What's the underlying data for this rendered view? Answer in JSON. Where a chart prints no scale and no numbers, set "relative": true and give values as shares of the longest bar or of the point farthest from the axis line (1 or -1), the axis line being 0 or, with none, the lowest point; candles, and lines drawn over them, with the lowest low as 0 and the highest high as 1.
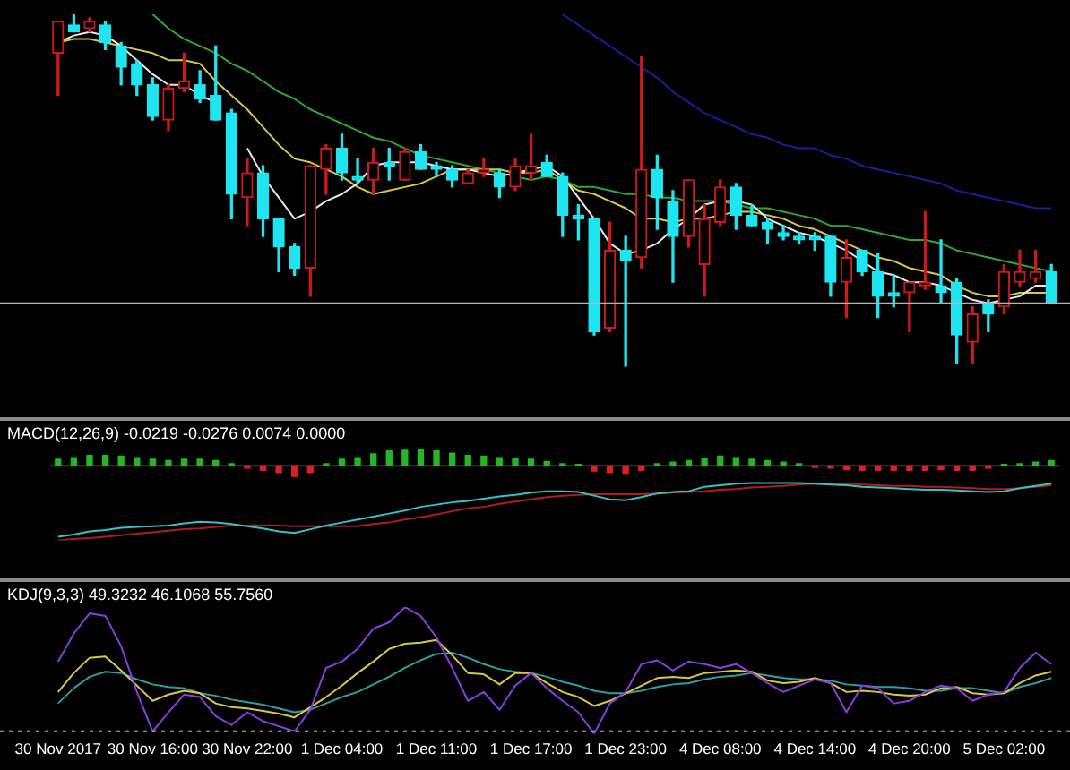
{
  "chart_data": [
    {
      "type": "candlestick",
      "relative": true,
      "categories": [
        null,
        null,
        null,
        null,
        null,
        null,
        null,
        null,
        null,
        null,
        null,
        null,
        null,
        null,
        null,
        null,
        null,
        null,
        null,
        null,
        null,
        null,
        null,
        null,
        null,
        null,
        null,
        null,
        null,
        null,
        null,
        null,
        null,
        null,
        null,
        null,
        null,
        null,
        null,
        null,
        null,
        null,
        null,
        null,
        null,
        null,
        null,
        null,
        null,
        null,
        null,
        null,
        null,
        null,
        null,
        null,
        null,
        null,
        null,
        null,
        null,
        null,
        null,
        null
      ],
      "ohlc": [
        [
          0.89,
          0.98,
          0.77,
          0.98
        ],
        [
          0.97,
          1,
          0.95,
          0.95
        ],
        [
          0.96,
          0.99,
          0.95,
          0.98
        ],
        [
          0.97,
          0.98,
          0.9,
          0.92
        ],
        [
          0.91,
          0.92,
          0.8,
          0.85
        ],
        [
          0.86,
          0.87,
          0.77,
          0.8
        ],
        [
          0.8,
          0.82,
          0.7,
          0.71
        ],
        [
          0.7,
          0.8,
          0.67,
          0.79
        ],
        [
          0.79,
          0.89,
          0.78,
          0.81
        ],
        [
          0.8,
          0.84,
          0.75,
          0.76
        ],
        [
          0.77,
          0.91,
          0.7,
          0.7
        ],
        [
          0.72,
          0.73,
          0.42,
          0.49
        ],
        [
          0.48,
          0.59,
          0.4,
          0.55
        ],
        [
          0.55,
          0.57,
          0.37,
          0.42
        ],
        [
          0.42,
          0.42,
          0.27,
          0.34
        ],
        [
          0.34,
          0.35,
          0.26,
          0.28
        ],
        [
          0.28,
          0.57,
          0.2,
          0.57
        ],
        [
          0.56,
          0.63,
          0.49,
          0.62
        ],
        [
          0.62,
          0.66,
          0.53,
          0.55
        ],
        [
          0.54,
          0.59,
          0.52,
          0.53
        ],
        [
          0.53,
          0.62,
          0.49,
          0.58
        ],
        [
          0.58,
          0.62,
          0.53,
          0.57
        ],
        [
          0.53,
          0.62,
          0.53,
          0.61
        ],
        [
          0.61,
          0.63,
          0.56,
          0.56
        ],
        [
          0.57,
          0.58,
          0.54,
          0.56
        ],
        [
          0.56,
          0.57,
          0.51,
          0.53
        ],
        [
          0.52,
          0.56,
          0.52,
          0.55
        ],
        [
          0.55,
          0.59,
          0.54,
          0.56
        ],
        [
          0.55,
          0.56,
          0.48,
          0.51
        ],
        [
          0.51,
          0.59,
          0.5,
          0.57
        ],
        [
          0.55,
          0.66,
          0.53,
          0.57
        ],
        [
          0.58,
          0.6,
          0.54,
          0.54
        ],
        [
          0.54,
          0.55,
          0.37,
          0.43
        ],
        [
          0.43,
          0.46,
          0.36,
          0.42
        ],
        [
          0.42,
          0.42,
          0.09,
          0.1
        ],
        [
          0.11,
          0.41,
          0.1,
          0.33
        ],
        [
          0.33,
          0.37,
          0,
          0.3
        ],
        [
          0.31,
          0.88,
          0.28,
          0.56
        ],
        [
          0.56,
          0.6,
          0.39,
          0.48
        ],
        [
          0.47,
          0.5,
          0.24,
          0.37
        ],
        [
          0.37,
          0.53,
          0.34,
          0.53
        ],
        [
          0.29,
          0.46,
          0.2,
          0.42
        ],
        [
          0.41,
          0.53,
          0.4,
          0.51
        ],
        [
          0.51,
          0.52,
          0.39,
          0.43
        ],
        [
          0.43,
          0.46,
          0.4,
          0.4
        ],
        [
          0.41,
          0.42,
          0.35,
          0.39
        ],
        [
          0.38,
          0.4,
          0.36,
          0.37
        ],
        [
          0.37,
          0.38,
          0.35,
          0.36
        ],
        [
          0.37,
          0.38,
          0.33,
          0.36
        ],
        [
          0.37,
          0.37,
          0.2,
          0.24
        ],
        [
          0.24,
          0.36,
          0.14,
          0.31
        ],
        [
          0.33,
          0.33,
          0.26,
          0.27
        ],
        [
          0.27,
          0.32,
          0.14,
          0.2
        ],
        [
          0.21,
          0.26,
          0.17,
          0.2
        ],
        [
          0.21,
          0.24,
          0.1,
          0.24
        ],
        [
          0.23,
          0.44,
          0.22,
          0.24
        ],
        [
          0.23,
          0.36,
          0.18,
          0.21
        ],
        [
          0.24,
          0.25,
          0.01,
          0.09
        ],
        [
          0.07,
          0.17,
          0.01,
          0.15
        ],
        [
          0.18,
          0.19,
          0.1,
          0.15
        ],
        [
          0.17,
          0.29,
          0.15,
          0.27
        ],
        [
          0.24,
          0.33,
          0.23,
          0.27
        ],
        [
          0.25,
          0.33,
          0.24,
          0.27
        ],
        [
          0.27,
          0.29,
          0.18,
          0.18
        ]
      ],
      "colors": [
        "#cc1a1a",
        "#1ee6f0",
        "#cc1a1a",
        "#1ee6f0",
        "#1ee6f0",
        "#1ee6f0",
        "#1ee6f0",
        "#cc1a1a",
        "#cc1a1a",
        "#1ee6f0",
        "#1ee6f0",
        "#1ee6f0",
        "#cc1a1a",
        "#1ee6f0",
        "#1ee6f0",
        "#1ee6f0",
        "#cc1a1a",
        "#cc1a1a",
        "#1ee6f0",
        "#1ee6f0",
        "#cc1a1a",
        "#1ee6f0",
        "#cc1a1a",
        "#1ee6f0",
        "#1ee6f0",
        "#1ee6f0",
        "#cc1a1a",
        "#cc1a1a",
        "#1ee6f0",
        "#cc1a1a",
        "#cc1a1a",
        "#1ee6f0",
        "#1ee6f0",
        "#1ee6f0",
        "#1ee6f0",
        "#cc1a1a",
        "#1ee6f0",
        "#cc1a1a",
        "#1ee6f0",
        "#1ee6f0",
        "#cc1a1a",
        "#cc1a1a",
        "#cc1a1a",
        "#1ee6f0",
        "#1ee6f0",
        "#1ee6f0",
        "#1ee6f0",
        "#1ee6f0",
        "#1ee6f0",
        "#1ee6f0",
        "#cc1a1a",
        "#1ee6f0",
        "#1ee6f0",
        "#1ee6f0",
        "#cc1a1a",
        "#cc1a1a",
        "#1ee6f0",
        "#1ee6f0",
        "#cc1a1a",
        "#1ee6f0",
        "#cc1a1a",
        "#cc1a1a",
        "#cc1a1a",
        "#1ee6f0"
      ],
      "series": [
        {
          "type": "line",
          "color": "#e8e8e8",
          "values": [
            0.92,
            0.94,
            0.95,
            0.94,
            0.91,
            0.87,
            0.83,
            0.8,
            0.8,
            0.77,
            0.75,
            null,
            0.62,
            0.54,
            0.48,
            0.42,
            0.44,
            0.47,
            0.49,
            0.52,
            0.57,
            0.58,
            0.58,
            0.58,
            0.57,
            0.56,
            0.56,
            0.55,
            0.54,
            0.55,
            0.56,
            0.57,
            0.54,
            0.48,
            0.42,
            0.35,
            0.32,
            0.33,
            0.35,
            0.39,
            0.42,
            0.46,
            0.47,
            0.47,
            0.46,
            0.42,
            0.4,
            0.38,
            0.37,
            0.35,
            0.33,
            0.3,
            0.27,
            0.26,
            0.24,
            0.24,
            0.23,
            0.21,
            0.19,
            0.18,
            0.19,
            0.2,
            0.23,
            0.23
          ]
        },
        {
          "type": "line",
          "color": "#d8c840",
          "values": [
            0.92,
            0.93,
            0.93,
            0.92,
            0.91,
            0.9,
            0.89,
            0.87,
            0.87,
            0.86,
            0.81,
            0.77,
            0.73,
            0.68,
            0.63,
            0.59,
            0.58,
            0.56,
            0.54,
            0.51,
            0.49,
            0.5,
            0.51,
            0.52,
            0.54,
            0.56,
            0.56,
            0.56,
            0.56,
            0.55,
            0.55,
            0.56,
            0.53,
            0.5,
            0.49,
            0.47,
            0.45,
            0.42,
            0.42,
            0.41,
            0.42,
            0.42,
            0.43,
            0.44,
            0.44,
            0.43,
            0.42,
            0.4,
            0.39,
            0.37,
            0.35,
            0.33,
            0.31,
            0.3,
            0.28,
            0.27,
            0.26,
            0.23,
            0.21,
            0.2,
            0.2,
            0.21,
            0.21,
            0.21
          ]
        },
        {
          "type": "line",
          "color": "#2ea82e",
          "values": [
            null,
            null,
            null,
            null,
            null,
            null,
            1,
            0.96,
            0.93,
            0.91,
            0.89,
            0.86,
            0.84,
            0.81,
            0.78,
            0.76,
            0.73,
            0.71,
            0.69,
            0.67,
            0.65,
            0.64,
            0.62,
            0.6,
            0.59,
            0.58,
            0.57,
            0.56,
            0.55,
            0.54,
            0.53,
            0.54,
            0.53,
            0.51,
            0.51,
            0.5,
            0.49,
            0.49,
            0.48,
            0.48,
            0.47,
            0.47,
            0.47,
            0.46,
            0.45,
            0.45,
            0.44,
            0.43,
            0.42,
            0.4,
            0.4,
            0.39,
            0.38,
            0.37,
            0.36,
            0.36,
            0.35,
            0.33,
            0.32,
            0.31,
            0.3,
            0.29,
            0.28,
            0.27
          ]
        },
        {
          "type": "line",
          "color": "#1c1c9c",
          "values": [
            null,
            null,
            null,
            null,
            null,
            null,
            null,
            null,
            null,
            null,
            null,
            null,
            null,
            null,
            null,
            null,
            null,
            null,
            null,
            null,
            null,
            null,
            null,
            null,
            null,
            null,
            null,
            null,
            null,
            null,
            null,
            null,
            1,
            0.97,
            0.94,
            0.91,
            0.88,
            0.85,
            0.82,
            0.78,
            0.75,
            0.72,
            0.7,
            0.68,
            0.66,
            0.65,
            0.63,
            0.62,
            0.62,
            0.6,
            0.59,
            0.57,
            0.56,
            0.55,
            0.54,
            0.53,
            0.52,
            0.5,
            0.49,
            0.48,
            0.47,
            0.46,
            0.45,
            0.45
          ]
        }
      ],
      "ref_lines": [
        {
          "axis": "y",
          "value": 0.18,
          "color": "#b4b4b4"
        }
      ]
    },
    {
      "type": "bar",
      "relative": true,
      "categories": [
        null,
        null,
        null,
        null,
        null,
        null,
        null,
        null,
        null,
        null,
        null,
        null,
        null,
        null,
        null,
        null,
        null,
        null,
        null,
        null,
        null,
        null,
        null,
        null,
        null,
        null,
        null,
        null,
        null,
        null,
        null,
        null,
        null,
        null,
        null,
        null,
        null,
        null,
        null,
        null,
        null,
        null,
        null,
        null,
        null,
        null,
        null,
        null,
        null,
        null,
        null,
        null,
        null,
        null,
        null,
        null,
        null,
        null,
        null,
        null,
        null,
        null,
        null,
        null
      ],
      "series": [
        {
          "type": "bar",
          "values": [
            0.09,
            0.11,
            0.14,
            0.14,
            0.13,
            0.11,
            0.09,
            0.07,
            0.09,
            0.09,
            0.07,
            0.03,
            -0.03,
            -0.06,
            -0.09,
            -0.14,
            -0.09,
            0.03,
            0.09,
            0.11,
            0.16,
            0.2,
            0.21,
            0.22,
            0.2,
            0.17,
            0.14,
            0.13,
            0.11,
            0.1,
            0.09,
            0.06,
            0.03,
            0.02,
            -0.07,
            -0.09,
            -0.1,
            -0.06,
            0.03,
            0.05,
            0.07,
            0.1,
            0.13,
            0.11,
            0.09,
            0.07,
            0.05,
            0.03,
            -0.02,
            -0.03,
            -0.05,
            -0.06,
            -0.06,
            -0.06,
            -0.06,
            -0.06,
            -0.05,
            -0.06,
            -0.06,
            -0.03,
            0.02,
            0.03,
            0.05,
            0.07
          ],
          "colors": [
            "#22b822",
            "#22b822",
            "#22b822",
            "#22b822",
            "#22b822",
            "#22b822",
            "#22b822",
            "#22b822",
            "#22b822",
            "#22b822",
            "#22b822",
            "#22b822",
            "#e02020",
            "#e02020",
            "#e02020",
            "#e02020",
            "#e02020",
            "#22b822",
            "#22b822",
            "#22b822",
            "#22b822",
            "#22b822",
            "#22b822",
            "#22b822",
            "#22b822",
            "#22b822",
            "#22b822",
            "#22b822",
            "#22b822",
            "#22b822",
            "#22b822",
            "#22b822",
            "#22b822",
            "#22b822",
            "#e02020",
            "#e02020",
            "#e02020",
            "#e02020",
            "#22b822",
            "#22b822",
            "#22b822",
            "#22b822",
            "#22b822",
            "#22b822",
            "#22b822",
            "#22b822",
            "#22b822",
            "#22b822",
            "#e02020",
            "#e02020",
            "#e02020",
            "#e02020",
            "#e02020",
            "#e02020",
            "#e02020",
            "#e02020",
            "#e02020",
            "#e02020",
            "#e02020",
            "#e02020",
            "#22b822",
            "#22b822",
            "#22b822",
            "#22b822"
          ]
        },
        {
          "type": "line",
          "color": "#38c0c8",
          "values": [
            -0.95,
            -0.92,
            -0.88,
            -0.86,
            -0.83,
            -0.82,
            -0.81,
            -0.8,
            -0.77,
            -0.75,
            -0.76,
            -0.78,
            -0.81,
            -0.84,
            -0.88,
            -0.9,
            -0.85,
            -0.8,
            -0.76,
            -0.72,
            -0.68,
            -0.64,
            -0.6,
            -0.55,
            -0.52,
            -0.49,
            -0.47,
            -0.44,
            -0.41,
            -0.39,
            -0.36,
            -0.34,
            -0.34,
            -0.35,
            -0.4,
            -0.45,
            -0.46,
            -0.42,
            -0.37,
            -0.35,
            -0.34,
            -0.28,
            -0.26,
            -0.24,
            -0.23,
            -0.23,
            -0.23,
            -0.23,
            -0.24,
            -0.25,
            -0.26,
            -0.28,
            -0.29,
            -0.3,
            -0.31,
            -0.32,
            -0.32,
            -0.33,
            -0.34,
            -0.35,
            -0.34,
            -0.3,
            -0.27,
            -0.24
          ]
        },
        {
          "type": "line",
          "color": "#b01c1c",
          "values": [
            -1,
            -0.98,
            -0.97,
            -0.95,
            -0.93,
            -0.91,
            -0.89,
            -0.87,
            -0.85,
            -0.84,
            -0.82,
            -0.8,
            -0.8,
            -0.8,
            -0.8,
            -0.81,
            -0.81,
            -0.81,
            -0.81,
            -0.81,
            -0.78,
            -0.76,
            -0.72,
            -0.69,
            -0.65,
            -0.61,
            -0.57,
            -0.55,
            -0.51,
            -0.48,
            -0.45,
            -0.42,
            -0.4,
            -0.39,
            -0.38,
            -0.38,
            -0.38,
            -0.38,
            -0.37,
            -0.36,
            -0.35,
            -0.34,
            -0.32,
            -0.31,
            -0.29,
            -0.28,
            -0.27,
            -0.25,
            -0.24,
            -0.24,
            -0.24,
            -0.25,
            -0.26,
            -0.27,
            -0.27,
            -0.28,
            -0.28,
            -0.29,
            -0.3,
            -0.31,
            -0.31,
            -0.3,
            -0.28,
            -0.26
          ]
        }
      ],
      "annotations": [
        "MACD(12,26,9) -0.0219 -0.0276 0.0074 0.0000"
      ]
    },
    {
      "type": "line",
      "relative": true,
      "tick_labels": "x",
      "categories": [
        "30 Nov 2017",
        null,
        null,
        null,
        null,
        null,
        "30 Nov 16:00",
        null,
        null,
        null,
        null,
        null,
        "30 Nov 22:00",
        null,
        null,
        null,
        null,
        null,
        "1 Dec 04:00",
        null,
        null,
        null,
        null,
        null,
        "1 Dec 11:00",
        null,
        null,
        null,
        null,
        null,
        "1 Dec 17:00",
        null,
        null,
        null,
        null,
        null,
        "1 Dec 23:00",
        null,
        null,
        null,
        null,
        null,
        "4 Dec 08:00",
        null,
        null,
        null,
        null,
        null,
        "4 Dec 14:00",
        null,
        null,
        null,
        null,
        null,
        "4 Dec 20:00",
        null,
        null,
        null,
        null,
        null,
        "5 Dec 02:00",
        null,
        null,
        null
      ],
      "series": [
        {
          "type": "line",
          "color": "#8a3ce0",
          "values": [
            0.57,
            0.79,
            0.95,
            0.93,
            0.69,
            0.33,
            0.02,
            0.17,
            0.31,
            0.29,
            0.14,
            0.07,
            0.17,
            0.1,
            0.06,
            0.02,
            0.19,
            0.52,
            0.57,
            0.67,
            0.83,
            0.88,
            1,
            0.93,
            0.76,
            0.52,
            0.26,
            0.33,
            0.19,
            0.38,
            0.48,
            0.36,
            0.26,
            0.17,
            0,
            0.24,
            0.33,
            0.55,
            0.58,
            0.5,
            0.57,
            0.55,
            0.52,
            0.55,
            0.48,
            0.4,
            0.33,
            0.38,
            0.43,
            0.4,
            0.17,
            0.38,
            0.36,
            0.24,
            0.26,
            0.33,
            0.38,
            0.36,
            0.26,
            0.31,
            0.33,
            0.52,
            0.64,
            0.55
          ]
        },
        {
          "type": "line",
          "color": "#d8c840",
          "values": [
            0.33,
            0.48,
            0.6,
            0.61,
            0.5,
            0.38,
            0.26,
            0.31,
            0.34,
            0.32,
            0.24,
            0.21,
            0.2,
            0.18,
            0.16,
            0.13,
            0.21,
            0.29,
            0.38,
            0.48,
            0.57,
            0.67,
            0.71,
            0.72,
            0.74,
            0.62,
            0.48,
            0.47,
            0.39,
            0.48,
            0.48,
            0.4,
            0.33,
            0.29,
            0.22,
            0.26,
            0.32,
            0.38,
            0.44,
            0.45,
            0.44,
            0.48,
            0.49,
            0.5,
            0.49,
            0.42,
            0.4,
            0.41,
            0.44,
            0.4,
            0.33,
            0.34,
            0.33,
            0.31,
            0.3,
            0.31,
            0.36,
            0.37,
            0.32,
            0.31,
            0.32,
            0.4,
            0.46,
            0.49
          ]
        },
        {
          "type": "line",
          "color": "#2e9e9e",
          "values": [
            0.24,
            0.36,
            0.45,
            0.49,
            0.48,
            0.43,
            0.39,
            0.37,
            0.36,
            0.32,
            0.3,
            0.27,
            0.25,
            0.23,
            0.2,
            0.17,
            0.19,
            0.24,
            0.29,
            0.33,
            0.39,
            0.45,
            0.52,
            0.58,
            0.63,
            0.64,
            0.6,
            0.55,
            0.51,
            0.49,
            0.48,
            0.45,
            0.41,
            0.38,
            0.34,
            0.32,
            0.32,
            0.34,
            0.37,
            0.39,
            0.4,
            0.43,
            0.45,
            0.46,
            0.48,
            0.46,
            0.44,
            0.43,
            0.43,
            0.42,
            0.39,
            0.38,
            0.37,
            0.37,
            0.36,
            0.34,
            0.34,
            0.36,
            0.36,
            0.34,
            0.32,
            0.37,
            0.4,
            0.44
          ]
        }
      ],
      "ref_lines": [
        {
          "axis": "y",
          "value": 0.02,
          "color": "#b4b4b4",
          "line_style": "dotted"
        }
      ],
      "annotations": [
        "KDJ(9,3,3) 49.3232 46.1068 55.7560"
      ]
    }
  ]
}
